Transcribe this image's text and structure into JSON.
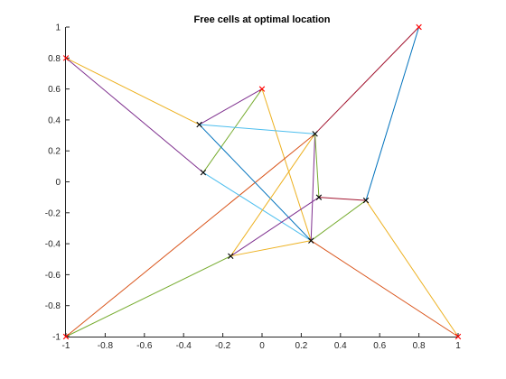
{
  "chart_data": {
    "type": "line",
    "title": "Free cells at optimal location",
    "xlabel": "",
    "ylabel": "",
    "xlim": [
      -1,
      1
    ],
    "ylim": [
      -1,
      1
    ],
    "x_ticks": [
      -1,
      -0.8,
      -0.6,
      -0.4,
      -0.2,
      0,
      0.2,
      0.4,
      0.6,
      0.8,
      1
    ],
    "y_ticks": [
      -1,
      -0.8,
      -0.6,
      -0.4,
      -0.2,
      0,
      0.2,
      0.4,
      0.6,
      0.8,
      1
    ],
    "x_tick_labels": [
      "-1",
      "-0.8",
      "-0.6",
      "-0.4",
      "-0.2",
      "0",
      "0.2",
      "0.4",
      "0.6",
      "0.8",
      "1"
    ],
    "y_tick_labels": [
      "-1",
      "-0.8",
      "-0.6",
      "-0.4",
      "-0.2",
      "0",
      "0.2",
      "0.4",
      "0.6",
      "0.8",
      "1"
    ],
    "grid": false,
    "box": "left-bottom",
    "fixed_cells": [
      {
        "x": -1,
        "y": 0.8
      },
      {
        "x": 0,
        "y": 0.6
      },
      {
        "x": 0.8,
        "y": 1
      },
      {
        "x": -1,
        "y": -1
      },
      {
        "x": 1,
        "y": -1
      }
    ],
    "free_cells": [
      {
        "x": -0.32,
        "y": 0.37
      },
      {
        "x": -0.3,
        "y": 0.06
      },
      {
        "x": 0.27,
        "y": 0.31
      },
      {
        "x": 0.29,
        "y": -0.1
      },
      {
        "x": 0.53,
        "y": -0.12
      },
      {
        "x": 0.25,
        "y": -0.38
      },
      {
        "x": -0.16,
        "y": -0.48
      }
    ],
    "series": [
      {
        "color": "#7e2f8e",
        "x": [
          0,
          -0.32
        ],
        "y": [
          0.6,
          0.37
        ]
      },
      {
        "color": "#77ac30",
        "x": [
          0,
          -0.3
        ],
        "y": [
          0.6,
          0.06
        ]
      },
      {
        "color": "#edb120",
        "x": [
          0,
          0.25
        ],
        "y": [
          0.6,
          -0.38
        ]
      },
      {
        "color": "#edb120",
        "x": [
          -1,
          -0.32
        ],
        "y": [
          0.8,
          0.37
        ]
      },
      {
        "color": "#7e2f8e",
        "x": [
          -1,
          -0.3
        ],
        "y": [
          0.8,
          0.06
        ]
      },
      {
        "color": "#d95319",
        "x": [
          -1,
          0.27
        ],
        "y": [
          -1,
          0.31
        ]
      },
      {
        "color": "#77ac30",
        "x": [
          -1,
          -0.16
        ],
        "y": [
          -1,
          -0.48
        ]
      },
      {
        "color": "#a2142f",
        "x": [
          0.8,
          0.27
        ],
        "y": [
          1,
          0.31
        ]
      },
      {
        "color": "#0072bd",
        "x": [
          0.8,
          0.53
        ],
        "y": [
          1,
          -0.12
        ]
      },
      {
        "color": "#d95319",
        "x": [
          1,
          0.25
        ],
        "y": [
          -1,
          -0.38
        ]
      },
      {
        "color": "#edb120",
        "x": [
          1,
          0.53
        ],
        "y": [
          -1,
          -0.12
        ]
      },
      {
        "color": "#4dbeee",
        "x": [
          -0.32,
          0.27
        ],
        "y": [
          0.37,
          0.31
        ]
      },
      {
        "color": "#0072bd",
        "x": [
          -0.32,
          0.25
        ],
        "y": [
          0.37,
          -0.38
        ]
      },
      {
        "color": "#4dbeee",
        "x": [
          -0.3,
          0.25
        ],
        "y": [
          0.06,
          -0.38
        ]
      },
      {
        "color": "#7e2f8e",
        "x": [
          0.27,
          0.25
        ],
        "y": [
          0.31,
          -0.38
        ]
      },
      {
        "color": "#77ac30",
        "x": [
          0.27,
          0.29
        ],
        "y": [
          0.31,
          -0.1
        ]
      },
      {
        "color": "#edb120",
        "x": [
          0.27,
          -0.16
        ],
        "y": [
          0.31,
          -0.48
        ]
      },
      {
        "color": "#a2142f",
        "x": [
          0.29,
          0.53
        ],
        "y": [
          -0.1,
          -0.12
        ]
      },
      {
        "color": "#7e2f8e",
        "x": [
          0.29,
          -0.16
        ],
        "y": [
          -0.1,
          -0.48
        ]
      },
      {
        "color": "#77ac30",
        "x": [
          0.53,
          0.25
        ],
        "y": [
          -0.12,
          -0.38
        ]
      },
      {
        "color": "#edb120",
        "x": [
          0.25,
          -0.16
        ],
        "y": [
          -0.38,
          -0.48
        ]
      }
    ],
    "fixed_marker_color": "#ff0000",
    "free_marker_color": "#000000",
    "axis_color": "#262626"
  }
}
